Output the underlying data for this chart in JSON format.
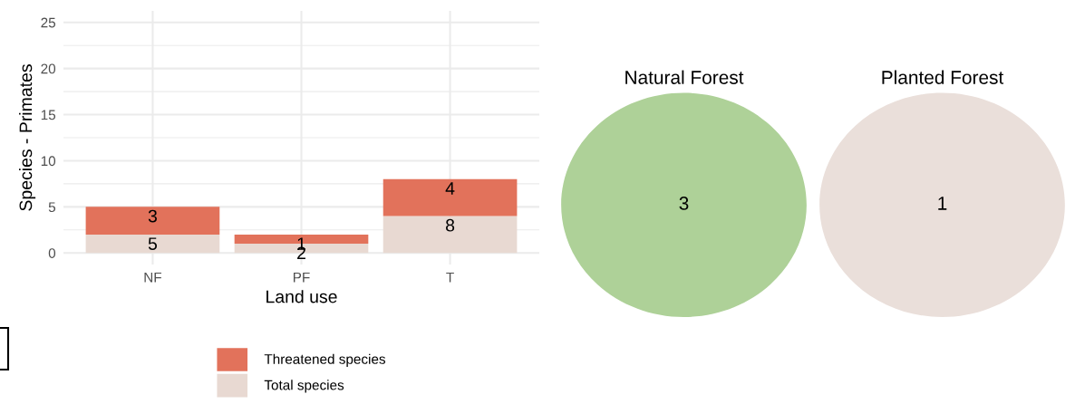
{
  "chart_data": [
    {
      "type": "bar",
      "stacked": true,
      "xlabel": "Land use",
      "ylabel": "Species - Primates",
      "categories": [
        "NF",
        "PF",
        "T"
      ],
      "series": [
        {
          "name": "Total species",
          "color": "#e8d9d2",
          "values": [
            2,
            1,
            4
          ]
        },
        {
          "name": "Threatened species",
          "color": "#e2725b",
          "values": [
            3,
            1,
            4
          ]
        }
      ],
      "annotations": [
        {
          "text": "3",
          "x": "NF",
          "y": 5
        },
        {
          "text": "5",
          "x": "NF",
          "y": 2
        },
        {
          "text": "1",
          "x": "PF",
          "y": 2
        },
        {
          "text": "2",
          "x": "PF",
          "y": 1
        },
        {
          "text": "4",
          "x": "T",
          "y": 8
        },
        {
          "text": "8",
          "x": "T",
          "y": 4
        }
      ],
      "ylim": [
        -1.25,
        26.25
      ],
      "yticks": [
        0,
        5,
        10,
        15,
        20,
        25
      ],
      "grid": true,
      "legend": "bottom"
    },
    {
      "type": "other",
      "categories": [
        "Natural Forest",
        "Planted Forest"
      ],
      "values": [
        3,
        1
      ],
      "data_labels": true,
      "colors": [
        "#aed198",
        "#eadfda"
      ]
    }
  ]
}
